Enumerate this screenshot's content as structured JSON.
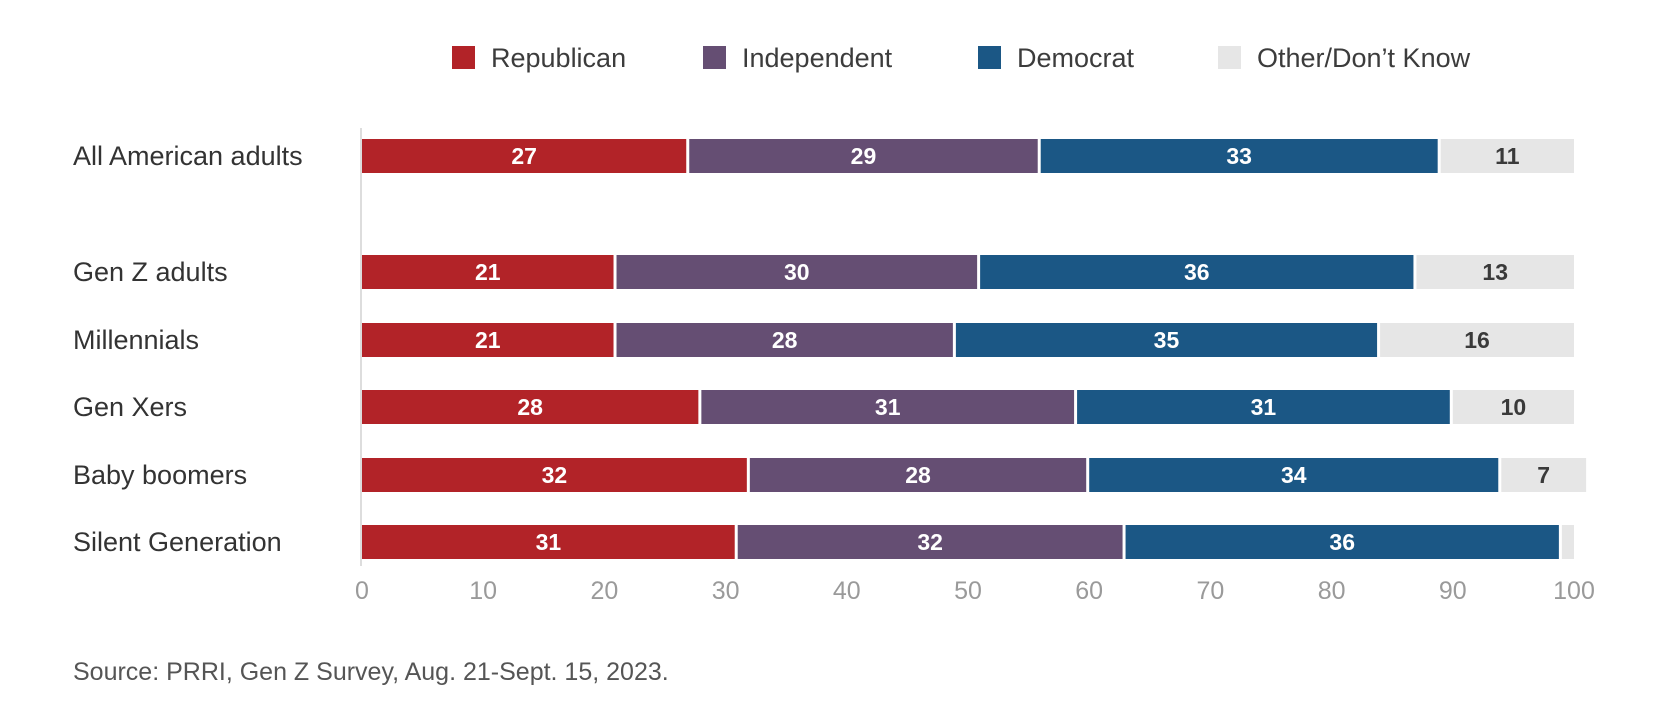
{
  "chart_data": {
    "type": "bar",
    "orientation": "horizontal",
    "stacked": true,
    "categories": [
      "All American adults",
      "Gen Z adults",
      "Millennials",
      "Gen Xers",
      "Baby boomers",
      "Silent Generation"
    ],
    "series": [
      {
        "name": "Republican",
        "color": "#b22328",
        "label_color": "#ffffff",
        "values": [
          27,
          21,
          21,
          28,
          32,
          31
        ]
      },
      {
        "name": "Independent",
        "color": "#654e73",
        "label_color": "#ffffff",
        "values": [
          29,
          30,
          28,
          31,
          28,
          32
        ]
      },
      {
        "name": "Democrat",
        "color": "#1b5785",
        "label_color": "#ffffff",
        "values": [
          33,
          36,
          35,
          31,
          34,
          36
        ]
      },
      {
        "name": "Other/Don’t Know",
        "color": "#e6e6e6",
        "label_color": "#3a3a3a",
        "values": [
          11,
          13,
          16,
          10,
          7,
          1
        ]
      }
    ],
    "data_labels": [
      [
        "27",
        "21",
        "21",
        "28",
        "32",
        "31"
      ],
      [
        "29",
        "30",
        "28",
        "31",
        "28",
        "32"
      ],
      [
        "33",
        "36",
        "35",
        "31",
        "34",
        "36"
      ],
      [
        "11",
        "13",
        "16",
        "10",
        "7",
        ""
      ]
    ],
    "xlim": [
      0,
      100
    ],
    "xticks": [
      "0",
      "10",
      "20",
      "30",
      "40",
      "50",
      "60",
      "70",
      "80",
      "90",
      "100"
    ],
    "legend_position": "top",
    "grid": false
  },
  "source": "Source: PRRI, Gen Z Survey, Aug. 21-Sept. 15, 2023."
}
